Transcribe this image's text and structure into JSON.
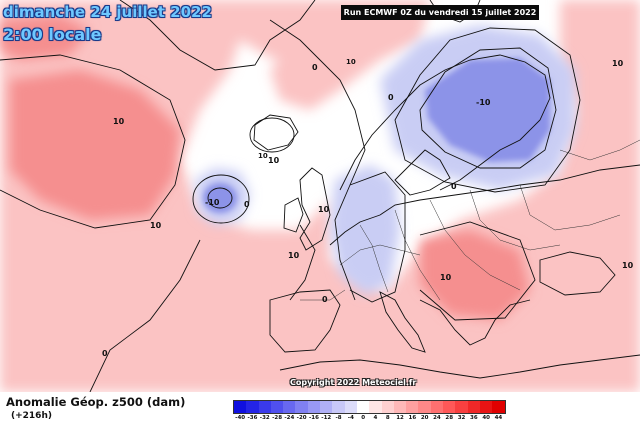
{
  "header": {
    "date_label": "dimanche 24 juillet 2022",
    "time_label": "2:00 locale",
    "run_label": "Run ECMWF 0Z du vendredi 15 juillet 2022"
  },
  "footer": {
    "parameter_label": "Anomalie Géop. z500 (dam)",
    "lead_time_label": "(+216h)",
    "copyright_label": "Copyright 2022 Meteociel.fr"
  },
  "legend": {
    "values": [
      "-40",
      "-36",
      "-32",
      "-28",
      "-24",
      "-20",
      "-16",
      "-12",
      "-8",
      "-4",
      "0",
      "4",
      "8",
      "12",
      "16",
      "20",
      "24",
      "28",
      "32",
      "36",
      "40",
      "44"
    ],
    "colors": [
      "#1010e0",
      "#2424e6",
      "#3a3aea",
      "#5050ee",
      "#6868f0",
      "#8080f2",
      "#9898f4",
      "#b0b0f6",
      "#c8c8f8",
      "#dcdcfa",
      "#ffffff",
      "#ffe6e6",
      "#ffd0d0",
      "#ffb8b8",
      "#ffa0a0",
      "#ff8888",
      "#ff7070",
      "#ff5858",
      "#f84040",
      "#f02828",
      "#e81414",
      "#e00000"
    ]
  },
  "map": {
    "positive_anomaly_color": "#fbc3c3",
    "strong_positive_color": "#f58f8f",
    "negative_anomaly_color": "#c9cdf4",
    "strong_negative_color": "#8c93e8",
    "neutral_color": "#ffffff",
    "contour_labels": [
      {
        "id": "c1",
        "text": "10"
      },
      {
        "id": "c2",
        "text": "0"
      },
      {
        "id": "c3",
        "text": "10"
      },
      {
        "id": "c4",
        "text": "10"
      },
      {
        "id": "c5",
        "text": "10"
      },
      {
        "id": "c6",
        "text": "-10"
      },
      {
        "id": "c7",
        "text": "0"
      },
      {
        "id": "c8",
        "text": "0"
      },
      {
        "id": "c9",
        "text": "10"
      },
      {
        "id": "c10",
        "text": "0"
      },
      {
        "id": "c11",
        "text": "10"
      },
      {
        "id": "c12",
        "text": "-10"
      },
      {
        "id": "c13",
        "text": "0"
      },
      {
        "id": "c14",
        "text": "10"
      },
      {
        "id": "c15",
        "text": "10"
      },
      {
        "id": "c16",
        "text": "0"
      }
    ],
    "center_markers": [
      {
        "id": "m1",
        "text": "10"
      },
      {
        "id": "m2",
        "text": "10"
      }
    ]
  }
}
